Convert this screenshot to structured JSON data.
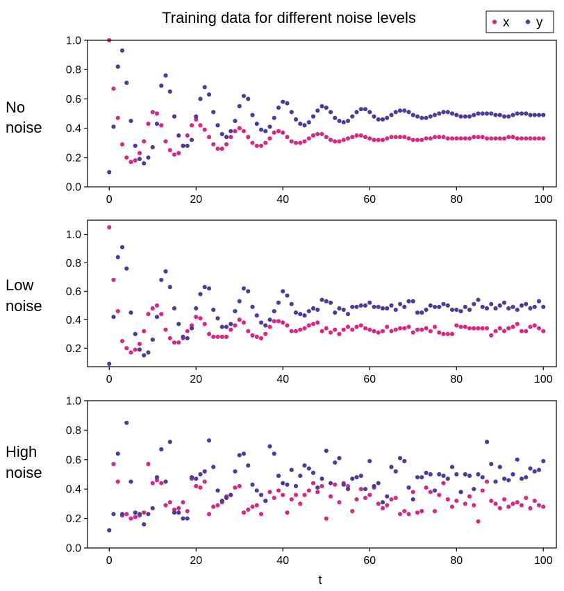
{
  "title": "Training data for different noise levels",
  "legend": {
    "placement": "top-right",
    "entries": [
      {
        "label": "x",
        "color": "#d62a82"
      },
      {
        "label": "y",
        "color": "#4a3c9a"
      }
    ]
  },
  "xlabel": "t",
  "chart_data": [
    {
      "type": "scatter",
      "row_label": [
        "No",
        "noise"
      ],
      "xlim": [
        -5,
        103
      ],
      "ylim": [
        0,
        1
      ],
      "xticks": [
        0,
        20,
        40,
        60,
        80,
        100
      ],
      "yticks": [
        0.0,
        0.2,
        0.4,
        0.6,
        0.8,
        1.0
      ],
      "ytick_labels": [
        "0.0",
        "0.2",
        "0.4",
        "0.6",
        "0.8",
        "1.0"
      ],
      "series": [
        {
          "name": "x",
          "color": "#d62a82",
          "values": [
            1.0,
            0.67,
            0.47,
            0.29,
            0.2,
            0.17,
            0.18,
            0.23,
            0.31,
            0.43,
            0.51,
            0.5,
            0.42,
            0.31,
            0.25,
            0.22,
            0.23,
            0.28,
            0.35,
            0.42,
            0.46,
            0.42,
            0.39,
            0.34,
            0.29,
            0.26,
            0.26,
            0.29,
            0.34,
            0.38,
            0.4,
            0.38,
            0.34,
            0.3,
            0.28,
            0.28,
            0.3,
            0.33,
            0.37,
            0.38,
            0.37,
            0.34,
            0.31,
            0.3,
            0.3,
            0.31,
            0.33,
            0.35,
            0.36,
            0.36,
            0.34,
            0.32,
            0.31,
            0.31,
            0.32,
            0.33,
            0.34,
            0.35,
            0.35,
            0.34,
            0.33,
            0.32,
            0.32,
            0.32,
            0.33,
            0.34,
            0.34,
            0.34,
            0.34,
            0.33,
            0.32,
            0.32,
            0.32,
            0.33,
            0.33,
            0.34,
            0.34,
            0.34,
            0.33,
            0.33,
            0.33,
            0.33,
            0.33,
            0.33,
            0.34,
            0.34,
            0.34,
            0.33,
            0.33,
            0.33,
            0.33,
            0.33,
            0.34,
            0.34,
            0.33,
            0.33,
            0.33,
            0.33,
            0.33,
            0.33,
            0.33
          ]
        },
        {
          "name": "y",
          "color": "#4a3c9a",
          "values": [
            0.1,
            0.41,
            0.82,
            0.93,
            0.71,
            0.45,
            0.28,
            0.19,
            0.16,
            0.2,
            0.27,
            0.43,
            0.69,
            0.76,
            0.65,
            0.48,
            0.35,
            0.28,
            0.28,
            0.32,
            0.48,
            0.6,
            0.68,
            0.63,
            0.51,
            0.42,
            0.36,
            0.34,
            0.38,
            0.45,
            0.55,
            0.62,
            0.6,
            0.49,
            0.43,
            0.39,
            0.38,
            0.41,
            0.47,
            0.54,
            0.58,
            0.57,
            0.51,
            0.46,
            0.43,
            0.42,
            0.44,
            0.48,
            0.52,
            0.55,
            0.54,
            0.51,
            0.47,
            0.45,
            0.44,
            0.45,
            0.48,
            0.51,
            0.53,
            0.53,
            0.51,
            0.48,
            0.46,
            0.46,
            0.47,
            0.49,
            0.51,
            0.52,
            0.52,
            0.51,
            0.49,
            0.48,
            0.47,
            0.47,
            0.48,
            0.49,
            0.5,
            0.51,
            0.51,
            0.5,
            0.49,
            0.48,
            0.48,
            0.48,
            0.49,
            0.5,
            0.5,
            0.5,
            0.5,
            0.49,
            0.49,
            0.48,
            0.48,
            0.49,
            0.5,
            0.5,
            0.5,
            0.49,
            0.49,
            0.49,
            0.49
          ]
        }
      ]
    },
    {
      "type": "scatter",
      "row_label": [
        "Low",
        "noise"
      ],
      "xlim": [
        -5,
        103
      ],
      "ylim": [
        0.07,
        1.1
      ],
      "xticks": [
        0,
        20,
        40,
        60,
        80,
        100
      ],
      "yticks": [
        0.2,
        0.4,
        0.6,
        0.8,
        1.0
      ],
      "ytick_labels": [
        "0.2",
        "0.4",
        "0.6",
        "0.8",
        "1.0"
      ],
      "series": [
        {
          "name": "x",
          "color": "#d62a82",
          "values": [
            1.05,
            0.68,
            0.46,
            0.25,
            0.2,
            0.17,
            0.19,
            0.23,
            0.32,
            0.44,
            0.48,
            0.5,
            0.44,
            0.33,
            0.27,
            0.24,
            0.24,
            0.27,
            0.32,
            0.36,
            0.42,
            0.41,
            0.37,
            0.3,
            0.28,
            0.28,
            0.28,
            0.28,
            0.33,
            0.36,
            0.4,
            0.38,
            0.32,
            0.29,
            0.28,
            0.27,
            0.3,
            0.35,
            0.39,
            0.39,
            0.38,
            0.36,
            0.32,
            0.32,
            0.33,
            0.34,
            0.36,
            0.37,
            0.38,
            0.32,
            0.34,
            0.31,
            0.33,
            0.3,
            0.33,
            0.35,
            0.33,
            0.35,
            0.36,
            0.34,
            0.33,
            0.32,
            0.31,
            0.32,
            0.35,
            0.32,
            0.33,
            0.34,
            0.34,
            0.35,
            0.31,
            0.33,
            0.33,
            0.34,
            0.32,
            0.35,
            0.31,
            0.3,
            0.3,
            0.3,
            0.36,
            0.35,
            0.35,
            0.34,
            0.34,
            0.34,
            0.34,
            0.34,
            0.29,
            0.32,
            0.34,
            0.32,
            0.34,
            0.35,
            0.37,
            0.32,
            0.32,
            0.35,
            0.36,
            0.34,
            0.32
          ]
        },
        {
          "name": "y",
          "color": "#4a3c9a",
          "values": [
            0.09,
            0.42,
            0.84,
            0.91,
            0.76,
            0.45,
            0.3,
            0.19,
            0.15,
            0.17,
            0.26,
            0.42,
            0.68,
            0.74,
            0.63,
            0.48,
            0.37,
            0.28,
            0.27,
            0.34,
            0.48,
            0.58,
            0.63,
            0.62,
            0.47,
            0.41,
            0.35,
            0.35,
            0.37,
            0.46,
            0.53,
            0.62,
            0.6,
            0.49,
            0.43,
            0.38,
            0.36,
            0.4,
            0.46,
            0.52,
            0.6,
            0.57,
            0.51,
            0.45,
            0.44,
            0.43,
            0.46,
            0.48,
            0.47,
            0.54,
            0.53,
            0.52,
            0.45,
            0.48,
            0.47,
            0.44,
            0.49,
            0.49,
            0.5,
            0.5,
            0.52,
            0.49,
            0.49,
            0.48,
            0.48,
            0.5,
            0.47,
            0.51,
            0.49,
            0.53,
            0.53,
            0.45,
            0.45,
            0.47,
            0.5,
            0.49,
            0.49,
            0.51,
            0.5,
            0.47,
            0.47,
            0.46,
            0.49,
            0.47,
            0.51,
            0.54,
            0.49,
            0.48,
            0.51,
            0.48,
            0.5,
            0.52,
            0.48,
            0.49,
            0.47,
            0.5,
            0.51,
            0.48,
            0.49,
            0.53,
            0.49
          ]
        }
      ]
    },
    {
      "type": "scatter",
      "row_label": [
        "High",
        "noise"
      ],
      "xlim": [
        -5,
        103
      ],
      "ylim": [
        0,
        1
      ],
      "xticks": [
        0,
        20,
        40,
        60,
        80,
        100
      ],
      "yticks": [
        0.0,
        0.2,
        0.4,
        0.6,
        0.8,
        1.0
      ],
      "ytick_labels": [
        "0.0",
        "0.2",
        "0.4",
        "0.6",
        "0.8",
        "1.0"
      ],
      "series": [
        {
          "name": "x",
          "color": "#d62a82",
          "values": [
            0.12,
            0.57,
            0.45,
            0.22,
            0.23,
            0.2,
            0.21,
            0.22,
            0.24,
            0.57,
            0.44,
            0.46,
            0.44,
            0.29,
            0.31,
            0.26,
            0.27,
            0.31,
            0.25,
            0.47,
            0.42,
            0.41,
            0.45,
            0.23,
            0.28,
            0.29,
            0.31,
            0.35,
            0.36,
            0.41,
            0.42,
            0.24,
            0.26,
            0.28,
            0.29,
            0.23,
            0.32,
            0.38,
            0.34,
            0.39,
            0.36,
            0.24,
            0.33,
            0.36,
            0.3,
            0.36,
            0.39,
            0.44,
            0.38,
            0.42,
            0.2,
            0.35,
            0.43,
            0.31,
            0.44,
            0.42,
            0.25,
            0.33,
            0.4,
            0.34,
            0.36,
            0.41,
            0.3,
            0.27,
            0.29,
            0.33,
            0.34,
            0.23,
            0.25,
            0.23,
            0.38,
            0.24,
            0.25,
            0.41,
            0.38,
            0.25,
            0.36,
            0.44,
            0.33,
            0.28,
            0.32,
            0.38,
            0.3,
            0.35,
            0.29,
            0.18,
            0.39,
            0.45,
            0.32,
            0.3,
            0.27,
            0.33,
            0.28,
            0.3,
            0.31,
            0.29,
            0.34,
            0.27,
            0.32,
            0.29,
            0.28
          ]
        },
        {
          "name": "y",
          "color": "#4a3c9a",
          "values": [
            0.12,
            0.23,
            0.64,
            0.23,
            0.85,
            0.45,
            0.24,
            0.23,
            0.16,
            0.23,
            0.27,
            0.48,
            0.67,
            0.45,
            0.72,
            0.24,
            0.24,
            0.2,
            0.2,
            0.48,
            0.47,
            0.5,
            0.52,
            0.73,
            0.55,
            0.39,
            0.32,
            0.34,
            0.36,
            0.52,
            0.63,
            0.64,
            0.56,
            0.43,
            0.39,
            0.36,
            0.32,
            0.69,
            0.64,
            0.49,
            0.44,
            0.43,
            0.53,
            0.42,
            0.49,
            0.56,
            0.54,
            0.51,
            0.41,
            0.47,
            0.66,
            0.44,
            0.58,
            0.61,
            0.43,
            0.4,
            0.47,
            0.48,
            0.49,
            0.4,
            0.59,
            0.42,
            0.44,
            0.31,
            0.35,
            0.55,
            0.52,
            0.61,
            0.59,
            0.41,
            0.33,
            0.48,
            0.48,
            0.51,
            0.5,
            0.39,
            0.5,
            0.49,
            0.47,
            0.55,
            0.5,
            0.38,
            0.5,
            0.49,
            0.4,
            0.5,
            0.48,
            0.72,
            0.57,
            0.45,
            0.55,
            0.47,
            0.46,
            0.5,
            0.6,
            0.47,
            0.48,
            0.54,
            0.52,
            0.53,
            0.59
          ]
        }
      ]
    }
  ]
}
